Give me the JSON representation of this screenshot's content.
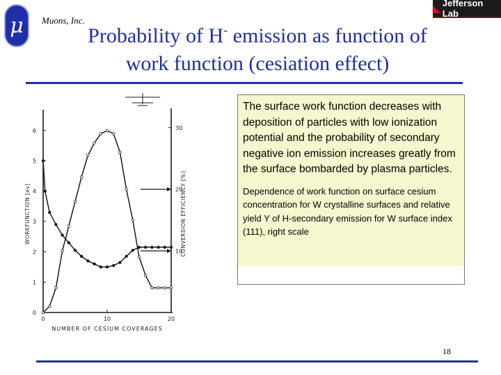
{
  "header": {
    "company": "Muons, Inc.",
    "logo_symbol": "μ",
    "partner_logo": "Jefferson Lab",
    "brand_color": "#1f2ea3",
    "title_part1": "Probability of H",
    "title_sup": "-",
    "title_part2": " emission as function of",
    "title_line2": "work function (cesiation effect)"
  },
  "chart_data": {
    "type": "line",
    "xlabel": "NUMBER OF CESIUM COVERAGES",
    "ylabel": "WORKFUNCTION [ev]",
    "y2label": "CONVERSION EFFICIENCY [%]",
    "x_ticks": [
      "0",
      "10",
      "20"
    ],
    "y_ticks": [
      "0",
      "1",
      "2",
      "3",
      "4",
      "5",
      "6"
    ],
    "y2_ticks": [
      "10",
      "20",
      "30"
    ],
    "xlim": [
      0,
      20
    ],
    "ylim": [
      0,
      6.5
    ],
    "y2lim": [
      0,
      32
    ],
    "grid": false,
    "series": [
      {
        "axis": "left",
        "x": [
          0,
          0.3,
          1,
          2,
          3,
          4,
          5,
          6,
          7,
          8,
          9,
          10,
          11,
          12,
          13,
          14,
          15,
          16,
          17,
          18,
          19,
          20
        ],
        "values": [
          5.0,
          4.0,
          3.3,
          2.9,
          2.55,
          2.3,
          2.05,
          1.85,
          1.7,
          1.6,
          1.5,
          1.5,
          1.55,
          1.65,
          1.85,
          2.05,
          2.15,
          2.15,
          2.15,
          2.15,
          2.15,
          2.15
        ]
      },
      {
        "axis": "right",
        "x": [
          0,
          1,
          2,
          3,
          4,
          5,
          6,
          7,
          8,
          9,
          10,
          11,
          12,
          13,
          14,
          15,
          16,
          17,
          18,
          19,
          20
        ],
        "values": [
          0,
          1,
          4,
          10,
          14,
          18,
          22,
          25.5,
          27.5,
          29,
          29.5,
          29,
          26,
          20,
          15,
          9,
          6,
          4,
          4,
          4,
          4
        ]
      }
    ],
    "arrows": [
      {
        "to": "right",
        "at_y2": 20
      },
      {
        "to": "right",
        "at_y2": 10
      }
    ]
  },
  "note": {
    "main": "The surface work function decreases with deposition of particles with low ionization potential and the probability of secondary negative ion emission increases greatly from the surface bombarded by plasma particles.",
    "caption": "Dependence of work function on surface cesium concentration for  W crystalline surfaces and relative yield Y of H-secondary emission for W surface index (111), right scale",
    "bg_color": "#f6f6cf"
  },
  "footer": {
    "page_number": "18"
  }
}
